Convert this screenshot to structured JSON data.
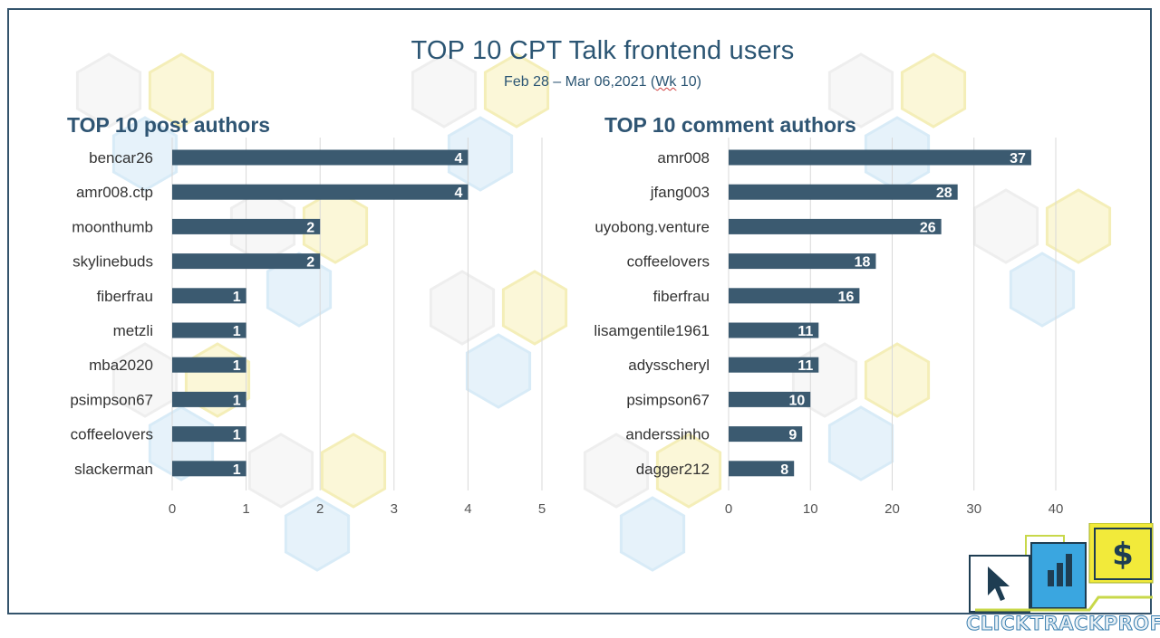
{
  "header": {
    "title": "TOP 10 CPT Talk frontend users",
    "subtitle_pre": "Feb 28 – Mar 06,2021 (",
    "subtitle_wk": "Wk",
    "subtitle_post": " 10)"
  },
  "logo": {
    "text": "CLICKTRACKPROFIT",
    "icons": [
      "cursor-icon",
      "bar-chart-icon",
      "dollar-icon"
    ]
  },
  "colors": {
    "bar": "#3b5a70",
    "title": "#2b5573",
    "border": "#34546c",
    "logo_blue": "#3aa6e0",
    "logo_yellow": "#f2ea3a"
  },
  "chart_data": [
    {
      "type": "bar",
      "orientation": "horizontal",
      "title": "TOP 10 post authors",
      "categories": [
        "bencar26",
        "amr008.ctp",
        "moonthumb",
        "skylinebuds",
        "fiberfrau",
        "metzli",
        "mba2020",
        "psimpson67",
        "coffeelovers",
        "slackerman"
      ],
      "values": [
        4,
        4,
        2,
        2,
        1,
        1,
        1,
        1,
        1,
        1
      ],
      "xlim": [
        0,
        5
      ],
      "ticks": [
        0,
        1,
        2,
        3,
        4,
        5
      ],
      "grid": true,
      "data_labels": true
    },
    {
      "type": "bar",
      "orientation": "horizontal",
      "title": "TOP 10 comment authors",
      "categories": [
        "amr008",
        "jfang003",
        "uyobong.venture",
        "coffeelovers",
        "fiberfrau",
        "lisamgentile1961",
        "adysscheryl",
        "psimpson67",
        "anderssinho",
        "dagger212"
      ],
      "values": [
        37,
        28,
        26,
        18,
        16,
        11,
        11,
        10,
        9,
        8
      ],
      "xlim": [
        0,
        40
      ],
      "ticks": [
        0,
        10,
        20,
        30,
        40
      ],
      "grid": true,
      "data_labels": true
    }
  ]
}
